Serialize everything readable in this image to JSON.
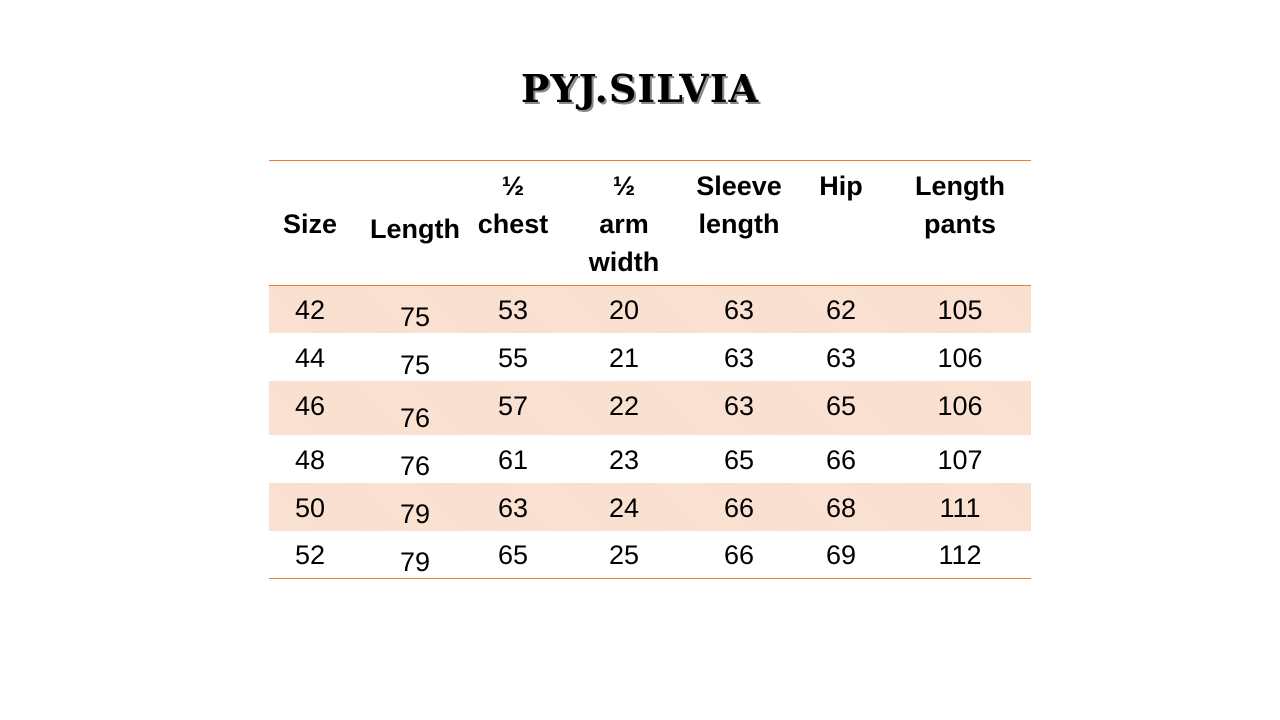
{
  "title": "PYJ.SILVIA",
  "table": {
    "headers": [
      [
        "Size"
      ],
      [
        "Length"
      ],
      [
        "½",
        "chest"
      ],
      [
        "½",
        "arm",
        "width"
      ],
      [
        "Sleeve",
        "length"
      ],
      [
        "Hip"
      ],
      [
        "Length",
        "pants"
      ]
    ],
    "rows": [
      [
        "42",
        "75",
        "53",
        "20",
        "63",
        "62",
        "105"
      ],
      [
        "44",
        "75",
        "55",
        "21",
        "63",
        "63",
        "106"
      ],
      [
        "46",
        "76",
        "57",
        "22",
        "63",
        "65",
        "106"
      ],
      [
        "48",
        "76",
        "61",
        "23",
        "65",
        "66",
        "107"
      ],
      [
        "50",
        "79",
        "63",
        "24",
        "66",
        "68",
        "111"
      ],
      [
        "52",
        "79",
        "65",
        "25",
        "66",
        "69",
        "112"
      ]
    ],
    "accent_color": "#ed7d31",
    "band_color": "#fbe3d4"
  }
}
